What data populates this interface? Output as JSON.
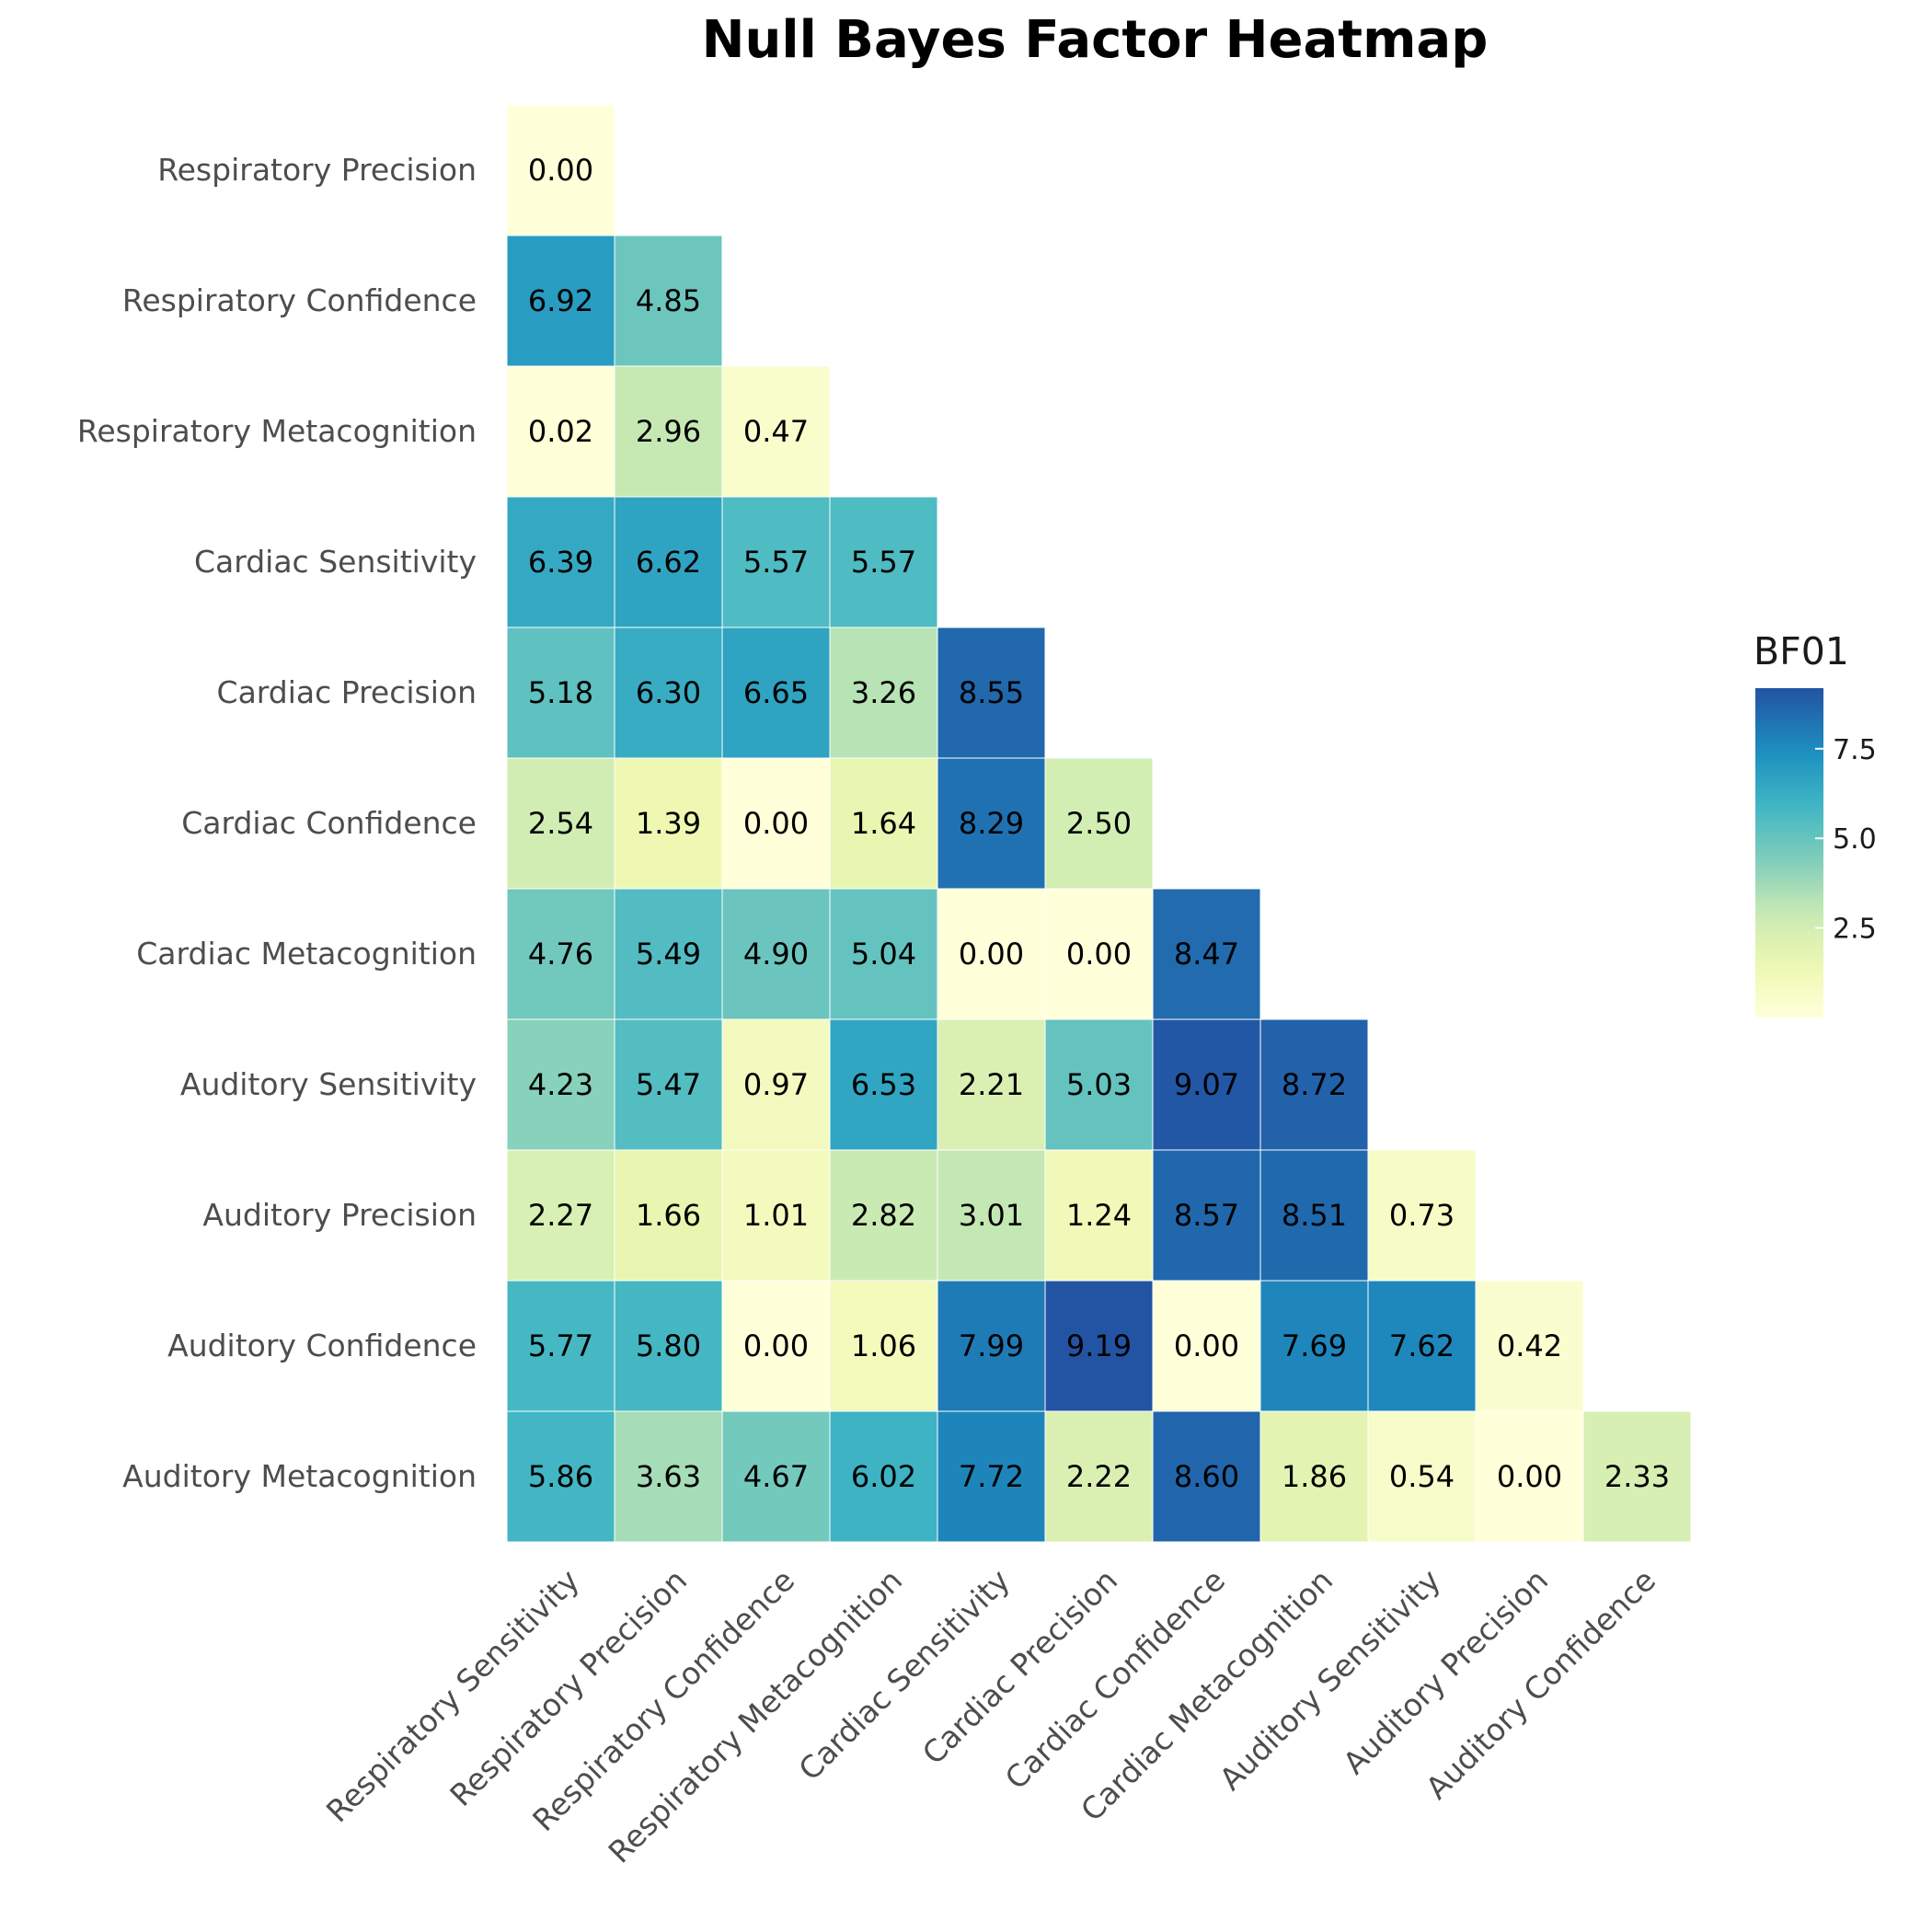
{
  "chart_data": {
    "type": "heatmap",
    "title": "Null Bayes Factor Heatmap",
    "row_labels": [
      "Respiratory Precision",
      "Respiratory Confidence",
      "Respiratory Metacognition",
      "Cardiac Sensitivity",
      "Cardiac Precision",
      "Cardiac Confidence",
      "Cardiac Metacognition",
      "Auditory Sensitivity",
      "Auditory Precision",
      "Auditory Confidence",
      "Auditory Metacognition"
    ],
    "col_labels": [
      "Respiratory Sensitivity",
      "Respiratory Precision",
      "Respiratory Confidence",
      "Respiratory Metacognition",
      "Cardiac Sensitivity",
      "Cardiac Precision",
      "Cardiac Confidence",
      "Cardiac Metacognition",
      "Auditory Sensitivity",
      "Auditory Precision",
      "Auditory Confidence"
    ],
    "values": [
      [
        0.0
      ],
      [
        6.92,
        4.85
      ],
      [
        0.02,
        2.96,
        0.47
      ],
      [
        6.39,
        6.62,
        5.57,
        5.57
      ],
      [
        5.18,
        6.3,
        6.65,
        3.26,
        8.55
      ],
      [
        2.54,
        1.39,
        0.0,
        1.64,
        8.29,
        2.5
      ],
      [
        4.76,
        5.49,
        4.9,
        5.04,
        0.0,
        0.0,
        8.47
      ],
      [
        4.23,
        5.47,
        0.97,
        6.53,
        2.21,
        5.03,
        9.07,
        8.72
      ],
      [
        2.27,
        1.66,
        1.01,
        2.82,
        3.01,
        1.24,
        8.57,
        8.51,
        0.73
      ],
      [
        5.77,
        5.8,
        0.0,
        1.06,
        7.99,
        9.19,
        0.0,
        7.69,
        7.62,
        0.42
      ],
      [
        5.86,
        3.63,
        4.67,
        6.02,
        7.72,
        2.22,
        8.6,
        1.86,
        0.54,
        0.0,
        2.33
      ]
    ],
    "colorbar": {
      "title": "BF01",
      "range": [
        0,
        9.19
      ],
      "ticks": [
        2.5,
        5.0,
        7.5
      ],
      "tick_labels": [
        "2.5",
        "5.0",
        "7.5"
      ],
      "colormap": "YlGnBu"
    },
    "legend_position": "right",
    "grid": false
  }
}
